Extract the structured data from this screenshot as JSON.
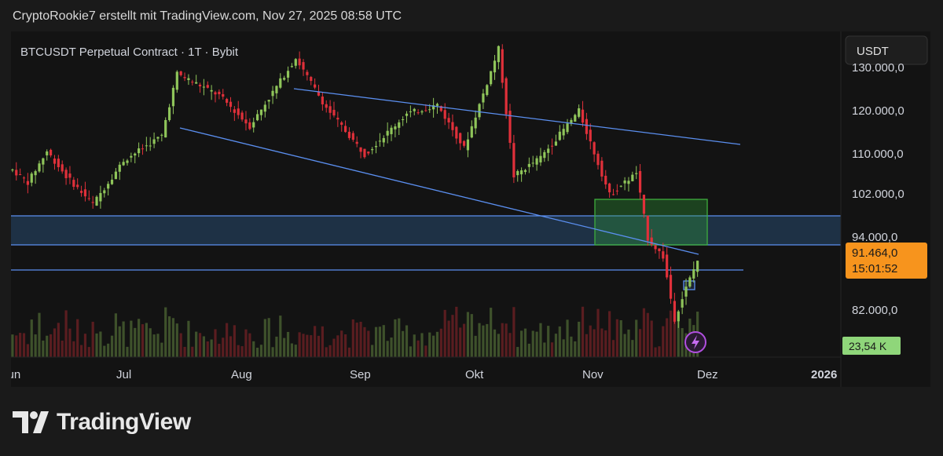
{
  "header": {
    "attribution": "CryptoRookie7 erstellt mit TradingView.com, Nov 27, 2025 08:58 UTC"
  },
  "branding": {
    "logo_text": "TradingView"
  },
  "colors": {
    "up": "#8fc55a",
    "down": "#e0303a",
    "trendline": "#5b8ff0",
    "zone_fill": "#1e3145",
    "box": "#2e9b36",
    "price_label": "#f7941d",
    "volume_label": "#8fd67a"
  },
  "chart_data": {
    "type": "candlestick",
    "title": "BTCUSDT Perpetual Contract · 1T · Bybit",
    "currency": "USDT",
    "y_ticks": [
      "130.000,0",
      "120.000,0",
      "110.000,0",
      "102.000,0",
      "94.000,0",
      "82.000,0"
    ],
    "y_tick_values": [
      130000,
      120000,
      110000,
      102000,
      94000,
      82000
    ],
    "x_ticks": [
      "Jun",
      "Jul",
      "Aug",
      "Sep",
      "Okt",
      "Nov",
      "Dez",
      "2026"
    ],
    "last_price": "91.464,0",
    "countdown": "15:01:52",
    "last_volume": "23,54 K",
    "price_path": [
      [
        "2025-06-01",
        106000
      ],
      [
        "2025-06-05",
        104000
      ],
      [
        "2025-06-10",
        109000
      ],
      [
        "2025-06-15",
        105000
      ],
      [
        "2025-06-22",
        100500
      ],
      [
        "2025-06-30",
        107500
      ],
      [
        "2025-07-10",
        111500
      ],
      [
        "2025-07-14",
        121500
      ],
      [
        "2025-07-25",
        118000
      ],
      [
        "2025-08-02",
        113000
      ],
      [
        "2025-08-14",
        124000
      ],
      [
        "2025-08-22",
        116000
      ],
      [
        "2025-09-01",
        108500
      ],
      [
        "2025-09-12",
        115000
      ],
      [
        "2025-09-20",
        116500
      ],
      [
        "2025-09-27",
        109500
      ],
      [
        "2025-10-03",
        120000
      ],
      [
        "2025-10-06",
        125500
      ],
      [
        "2025-10-10",
        105000
      ],
      [
        "2025-10-17",
        108000
      ],
      [
        "2025-10-27",
        115500
      ],
      [
        "2025-11-04",
        102000
      ],
      [
        "2025-11-11",
        105500
      ],
      [
        "2025-11-14",
        95000
      ],
      [
        "2025-11-18",
        92000
      ],
      [
        "2025-11-21",
        82000
      ],
      [
        "2025-11-24",
        87000
      ],
      [
        "2025-11-27",
        91464
      ]
    ],
    "annotations": {
      "descending_channel_top": [
        [
          "2025-08-14",
          125000
        ],
        [
          "2025-12-18",
          112500
        ]
      ],
      "descending_channel_bottom": [
        [
          "2025-07-15",
          117000
        ],
        [
          "2025-11-27",
          92000
        ]
      ],
      "horizontal_line": 88500,
      "blue_zone": [
        93500,
        97700
      ],
      "green_box": {
        "from": "2025-11-01",
        "to": "2025-11-30",
        "range": [
          93500,
          101000
        ]
      },
      "small_box": {
        "from": "2025-11-25",
        "to": "2025-11-28",
        "range": [
          85000,
          86500
        ]
      }
    }
  }
}
